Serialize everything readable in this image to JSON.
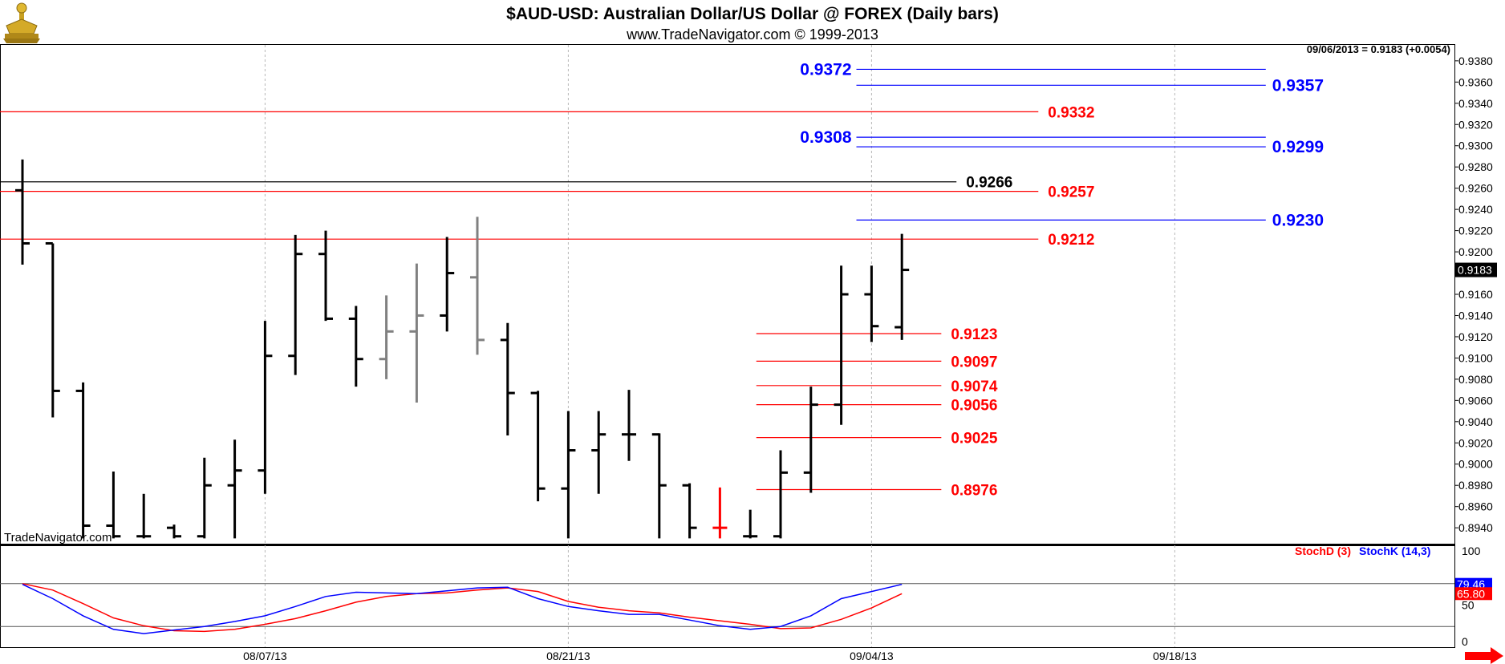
{
  "header": {
    "title": "$AUD-USD:  Australian Dollar/US Dollar @ FOREX  (Daily bars)",
    "subtitle": "www.TradeNavigator.com © 1999-2013",
    "last_quote": "09/06/2013 = 0.9183 (+0.0054)",
    "watermark": "TradeNavigator.com"
  },
  "colors": {
    "up_down_bar": "#000000",
    "unchanged_bar": "#808080",
    "red_level": "#ff0000",
    "blue_level": "#0000ff",
    "black_level": "#000000",
    "stoch_d": "#ff0000",
    "stoch_k": "#0000ff",
    "arrow": "#ff0000"
  },
  "chart_data": [
    {
      "type": "ohlc",
      "title": "$AUD-USD:  Australian Dollar/US Dollar @ FOREX  (Daily bars)",
      "ylim": [
        0.8925,
        0.9395
      ],
      "y_ticks": [
        "0.9380",
        "0.9360",
        "0.9340",
        "0.9320",
        "0.9300",
        "0.9280",
        "0.9260",
        "0.9240",
        "0.9220",
        "0.9200",
        "0.9180",
        "0.9160",
        "0.9140",
        "0.9120",
        "0.9100",
        "0.9080",
        "0.9060",
        "0.9040",
        "0.9020",
        "0.9000",
        "0.8980",
        "0.8960",
        "0.8940"
      ],
      "x_labels": [
        {
          "label": "08/07/13",
          "bar": 8
        },
        {
          "label": "08/21/13",
          "bar": 18
        },
        {
          "label": "09/04/13",
          "bar": 28
        },
        {
          "label": "09/18/13",
          "bar": 38
        }
      ],
      "last_price_label": "0.9183",
      "bars": [
        {
          "o": 0.9258,
          "h": 0.9287,
          "l": 0.9188,
          "c": 0.9208,
          "color": "black"
        },
        {
          "o": 0.9208,
          "h": 0.9208,
          "l": 0.9044,
          "c": 0.9069,
          "color": "black"
        },
        {
          "o": 0.9069,
          "h": 0.9077,
          "l": 0.893,
          "c": 0.8942,
          "color": "black"
        },
        {
          "o": 0.8942,
          "h": 0.8993,
          "l": 0.893,
          "c": 0.8932,
          "color": "black"
        },
        {
          "o": 0.8932,
          "h": 0.8972,
          "l": 0.893,
          "c": 0.8932,
          "color": "black"
        },
        {
          "o": 0.894,
          "h": 0.8943,
          "l": 0.893,
          "c": 0.8932,
          "color": "black"
        },
        {
          "o": 0.8932,
          "h": 0.9006,
          "l": 0.893,
          "c": 0.898,
          "color": "black"
        },
        {
          "o": 0.898,
          "h": 0.9023,
          "l": 0.893,
          "c": 0.8994,
          "color": "black"
        },
        {
          "o": 0.8994,
          "h": 0.9135,
          "l": 0.8972,
          "c": 0.9102,
          "color": "black"
        },
        {
          "o": 0.9102,
          "h": 0.9216,
          "l": 0.9084,
          "c": 0.9198,
          "color": "black"
        },
        {
          "o": 0.9198,
          "h": 0.922,
          "l": 0.9135,
          "c": 0.9137,
          "color": "black"
        },
        {
          "o": 0.9137,
          "h": 0.9149,
          "l": 0.9073,
          "c": 0.9099,
          "color": "black"
        },
        {
          "o": 0.9099,
          "h": 0.9159,
          "l": 0.908,
          "c": 0.9125,
          "color": "gray"
        },
        {
          "o": 0.9125,
          "h": 0.9189,
          "l": 0.9058,
          "c": 0.914,
          "color": "gray"
        },
        {
          "o": 0.914,
          "h": 0.9214,
          "l": 0.9125,
          "c": 0.918,
          "color": "black"
        },
        {
          "o": 0.9176,
          "h": 0.9233,
          "l": 0.9103,
          "c": 0.9117,
          "color": "gray"
        },
        {
          "o": 0.9117,
          "h": 0.9133,
          "l": 0.9027,
          "c": 0.9067,
          "color": "black"
        },
        {
          "o": 0.9067,
          "h": 0.9069,
          "l": 0.8965,
          "c": 0.8977,
          "color": "black"
        },
        {
          "o": 0.8977,
          "h": 0.905,
          "l": 0.893,
          "c": 0.9013,
          "color": "black"
        },
        {
          "o": 0.9013,
          "h": 0.905,
          "l": 0.8972,
          "c": 0.9028,
          "color": "black"
        },
        {
          "o": 0.9028,
          "h": 0.907,
          "l": 0.9003,
          "c": 0.9028,
          "color": "black"
        },
        {
          "o": 0.9028,
          "h": 0.9029,
          "l": 0.893,
          "c": 0.898,
          "color": "black"
        },
        {
          "o": 0.898,
          "h": 0.8982,
          "l": 0.893,
          "c": 0.894,
          "color": "black"
        },
        {
          "o": 0.894,
          "h": 0.8978,
          "l": 0.893,
          "c": 0.894,
          "color": "red"
        },
        {
          "o": 0.8932,
          "h": 0.8957,
          "l": 0.893,
          "c": 0.8932,
          "color": "black"
        },
        {
          "o": 0.8932,
          "h": 0.9013,
          "l": 0.893,
          "c": 0.8992,
          "color": "black"
        },
        {
          "o": 0.8992,
          "h": 0.9073,
          "l": 0.8973,
          "c": 0.9056,
          "color": "black"
        },
        {
          "o": 0.9056,
          "h": 0.9187,
          "l": 0.9037,
          "c": 0.916,
          "color": "black"
        },
        {
          "o": 0.916,
          "h": 0.9187,
          "l": 0.9115,
          "c": 0.913,
          "color": "black"
        },
        {
          "o": 0.9129,
          "h": 0.9217,
          "l": 0.9117,
          "c": 0.9183,
          "color": "black"
        }
      ],
      "levels": [
        {
          "value": 0.9372,
          "label": "0.9372",
          "color": "blue",
          "from_bar": 27.5,
          "to_bar": 41,
          "label_side": "left"
        },
        {
          "value": 0.9357,
          "label": "0.9357",
          "color": "blue",
          "from_bar": 27.5,
          "to_bar": 41,
          "label_side": "right"
        },
        {
          "value": 0.9332,
          "label": "0.9332",
          "color": "red",
          "from_bar": -1,
          "to_bar": 33.5,
          "label_side": "right"
        },
        {
          "value": 0.9308,
          "label": "0.9308",
          "color": "blue",
          "from_bar": 27.5,
          "to_bar": 41,
          "label_side": "left"
        },
        {
          "value": 0.9299,
          "label": "0.9299",
          "color": "blue",
          "from_bar": 27.5,
          "to_bar": 41,
          "label_side": "right"
        },
        {
          "value": 0.9266,
          "label": "0.9266",
          "color": "black",
          "from_bar": -1,
          "to_bar": 30.8,
          "label_side": "right"
        },
        {
          "value": 0.9257,
          "label": "0.9257",
          "color": "red",
          "from_bar": -1,
          "to_bar": 33.5,
          "label_side": "right"
        },
        {
          "value": 0.923,
          "label": "0.9230",
          "color": "blue",
          "from_bar": 27.5,
          "to_bar": 41,
          "label_side": "right"
        },
        {
          "value": 0.9212,
          "label": "0.9212",
          "color": "red",
          "from_bar": -1,
          "to_bar": 33.5,
          "label_side": "right"
        },
        {
          "value": 0.9123,
          "label": "0.9123",
          "color": "red",
          "from_bar": 24.2,
          "to_bar": 30.3,
          "label_side": "right"
        },
        {
          "value": 0.9097,
          "label": "0.9097",
          "color": "red",
          "from_bar": 24.2,
          "to_bar": 30.3,
          "label_side": "right"
        },
        {
          "value": 0.9074,
          "label": "0.9074",
          "color": "red",
          "from_bar": 24.2,
          "to_bar": 30.3,
          "label_side": "right"
        },
        {
          "value": 0.9056,
          "label": "0.9056",
          "color": "red",
          "from_bar": 24.2,
          "to_bar": 30.3,
          "label_side": "right"
        },
        {
          "value": 0.9025,
          "label": "0.9025",
          "color": "red",
          "from_bar": 24.2,
          "to_bar": 30.3,
          "label_side": "right"
        },
        {
          "value": 0.8976,
          "label": "0.8976",
          "color": "red",
          "from_bar": 24.2,
          "to_bar": 30.3,
          "label_side": "right"
        }
      ]
    },
    {
      "type": "line",
      "legend": [
        "StochD (3)",
        "StochK (14,3)"
      ],
      "ylim": [
        0,
        100
      ],
      "y_ticks": [
        "100",
        "50",
        "0"
      ],
      "reference_lines": [
        80,
        20
      ],
      "last_values": {
        "stoch_k": "79.46",
        "stoch_d": "65.80"
      },
      "series": [
        {
          "name": "StochD (3)",
          "values": [
            80,
            71,
            52,
            32,
            21,
            14,
            13,
            16,
            23,
            31,
            42,
            54,
            62,
            66,
            67,
            71,
            74,
            69,
            55,
            47,
            42,
            39,
            33,
            28,
            23,
            17,
            18,
            30,
            46,
            66
          ]
        },
        {
          "name": "StochK (14,3)",
          "values": [
            79,
            59,
            35,
            16,
            10,
            15,
            20,
            27,
            35,
            48,
            62,
            68,
            67,
            66,
            70,
            74,
            75,
            59,
            48,
            42,
            37,
            37,
            29,
            21,
            16,
            20,
            35,
            59,
            69,
            79
          ]
        }
      ]
    }
  ]
}
